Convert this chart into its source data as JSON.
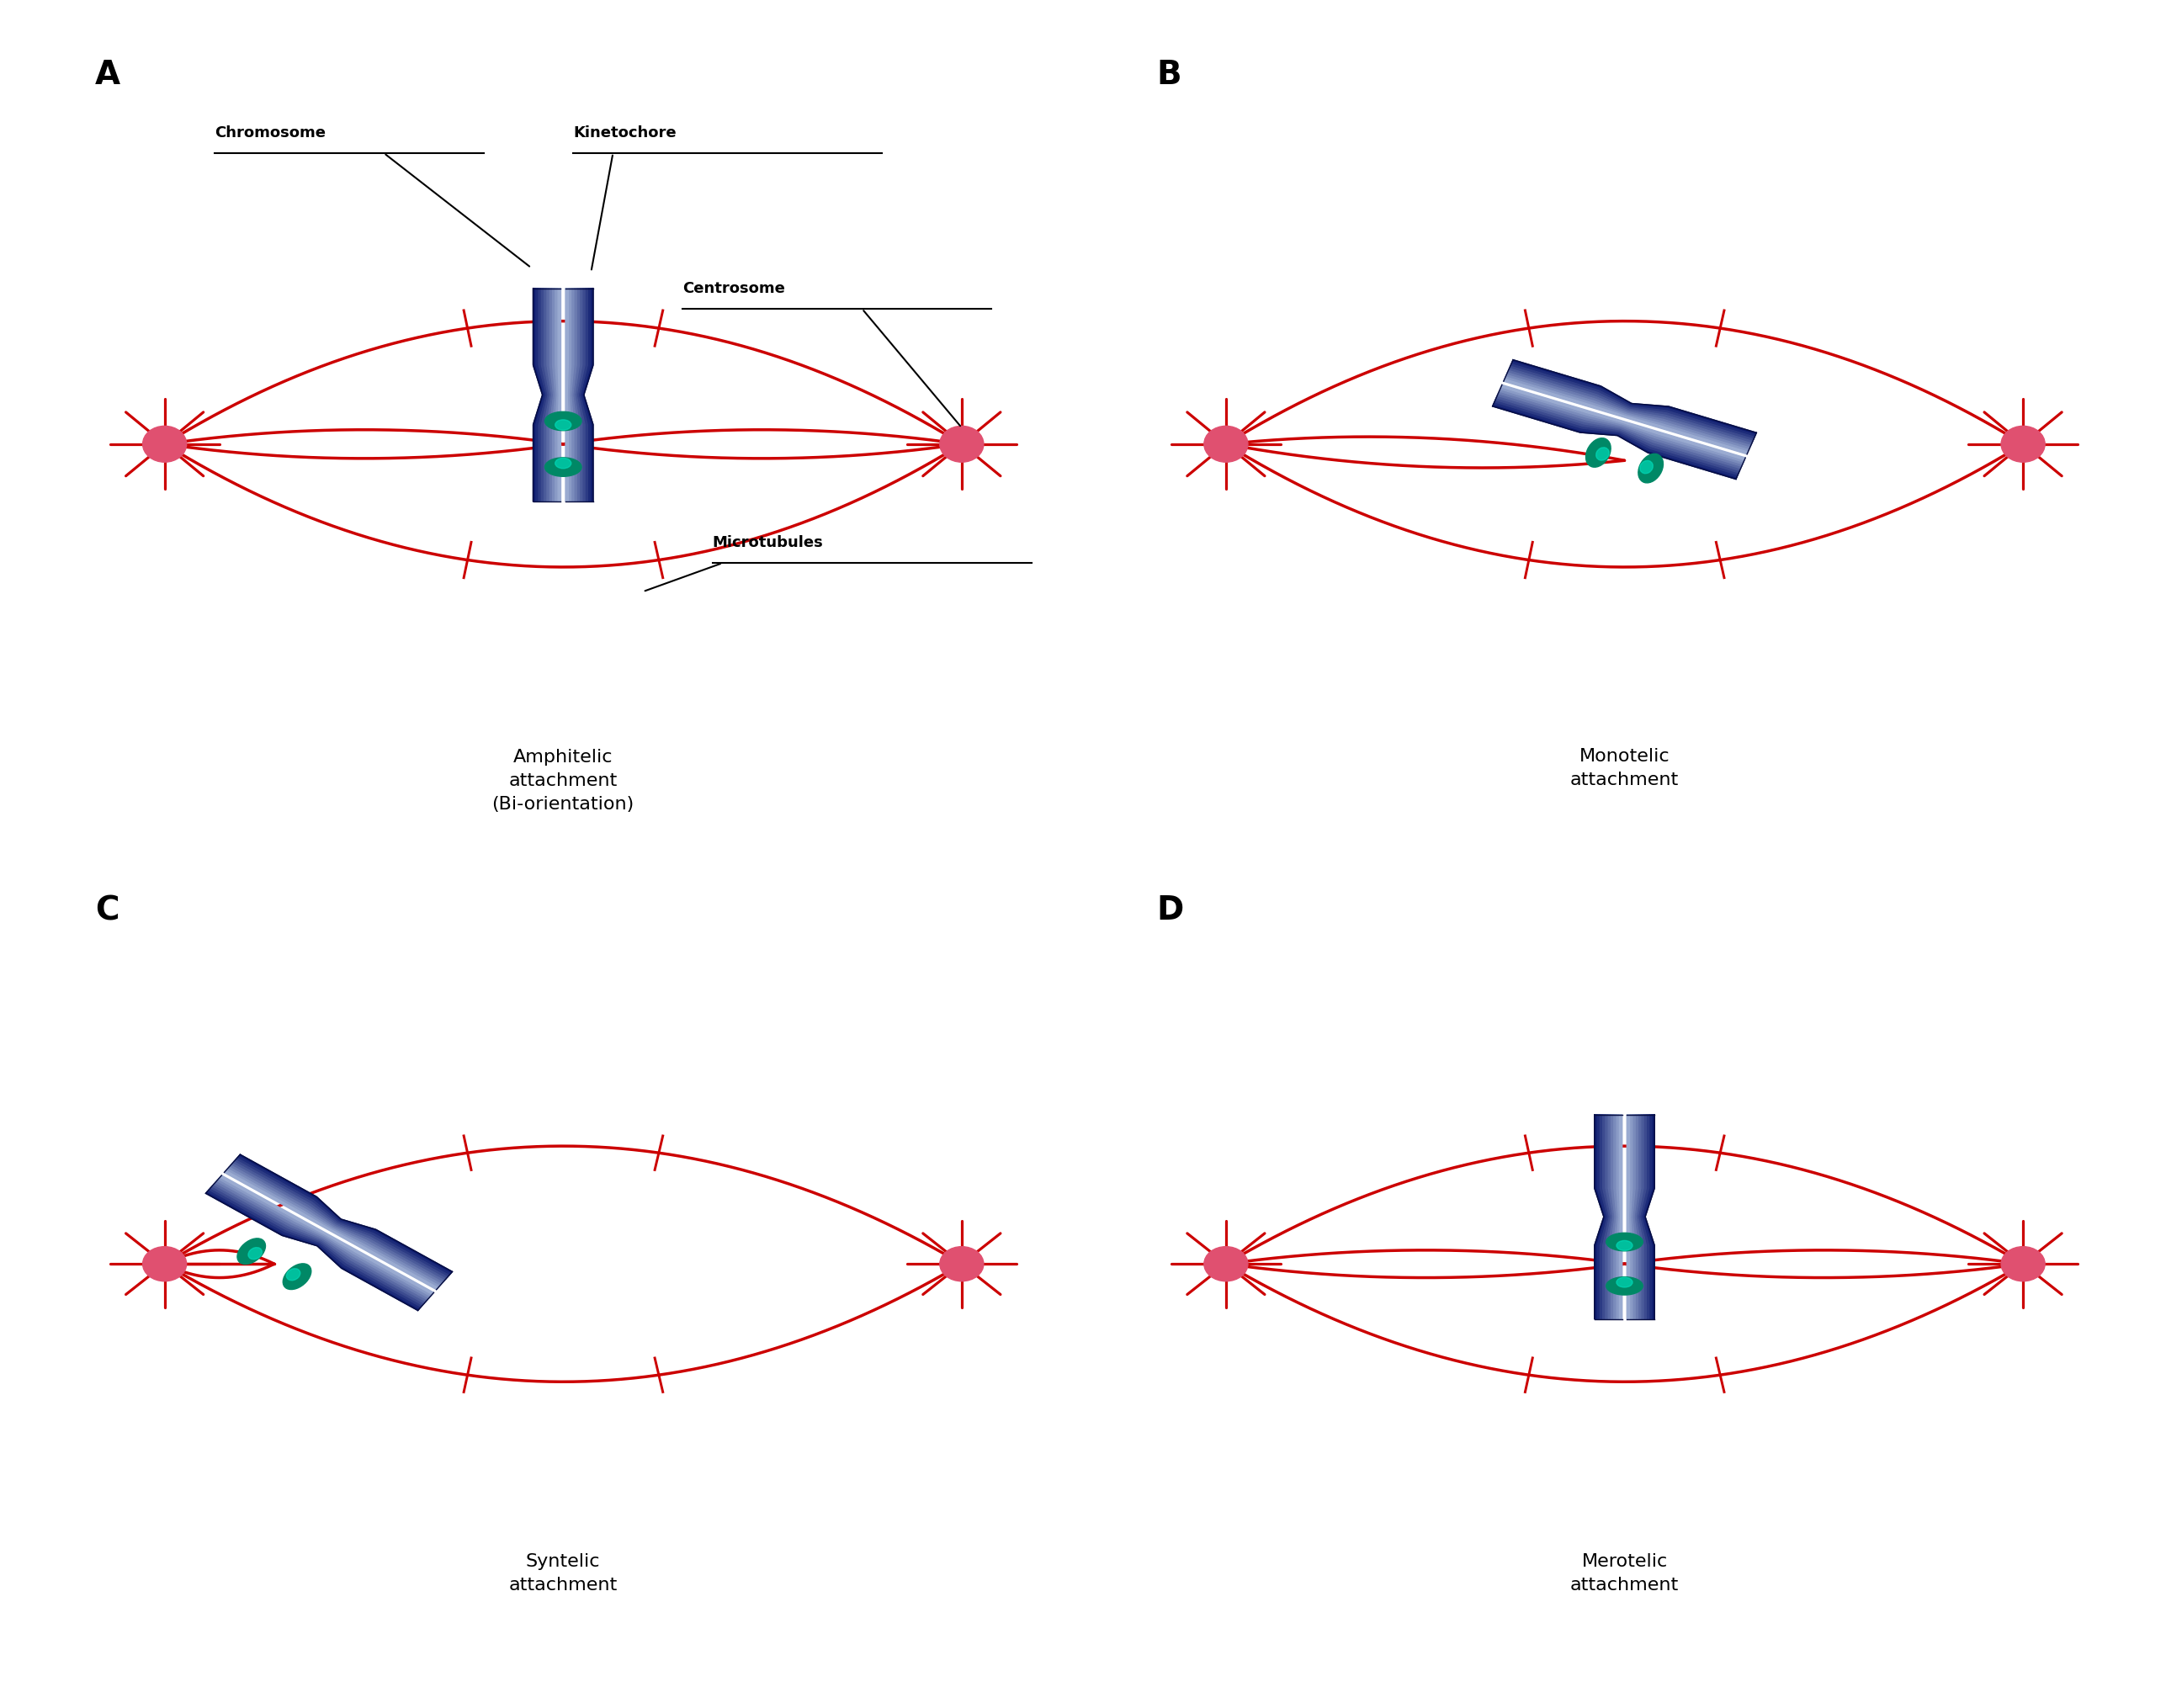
{
  "bg_color": "#ffffff",
  "red_color": "#cc0000",
  "centrosome_color": "#e05070",
  "dark_blue": "#0d1b6e",
  "green_color": "#009977",
  "panel_letters": [
    "A",
    "B",
    "C",
    "D"
  ],
  "label_A_texts": [
    "Chromosome",
    "Kinetochore",
    "Centrosome",
    "Microtubules"
  ],
  "caption_A": "Amphitelic\nattachment\n(Bi-orientation)",
  "caption_B": "Monotelic\nattachment",
  "caption_C": "Syntelic\nattachment",
  "caption_D": "Merotelic\nattachment",
  "font_caption": 16,
  "font_label": 13,
  "font_panel": 28
}
